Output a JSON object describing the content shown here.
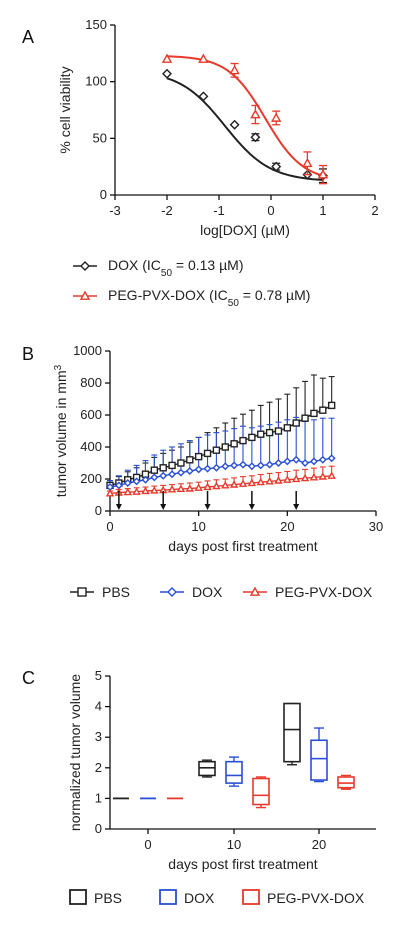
{
  "colors": {
    "black": "#222222",
    "red": "#e8392b",
    "blue": "#2a4fd6",
    "grid": "#111111"
  },
  "chart_data": [
    {
      "panel": "A",
      "type": "scatter",
      "xlabel": "log[DOX] (µM)",
      "ylabel": "% cell viability",
      "xlim": [
        -3,
        2
      ],
      "ylim": [
        0,
        150
      ],
      "xticks": [
        -3,
        -2,
        -1,
        0,
        1,
        2
      ],
      "yticks": [
        0,
        50,
        100,
        150
      ],
      "series": [
        {
          "name": "DOX (IC50 = 0.13 µM)",
          "legend_main": "DOX (IC",
          "legend_sub": "50",
          "legend_tail": " = 0.13 µM)",
          "marker": "diamond",
          "color": "#222222",
          "x": [
            -2,
            -1.3,
            -0.7,
            -0.3,
            0.1,
            0.7,
            1
          ],
          "y": [
            107,
            87,
            62,
            51,
            25,
            18,
            17
          ],
          "err": [
            0,
            0,
            0,
            3,
            3,
            0,
            6
          ],
          "fit": {
            "top": 110,
            "bottom": 12,
            "logic50": -0.886,
            "hill": 1
          }
        },
        {
          "name": "PEG-PVX-DOX (IC50 = 0.78 µM)",
          "legend_main": "PEG-PVX-DOX (IC",
          "legend_sub": "50",
          "legend_tail": " = 0.78 µM)",
          "marker": "triangle",
          "color": "#e8392b",
          "x": [
            -2,
            -1.3,
            -0.7,
            -0.3,
            0.1,
            0.7,
            1
          ],
          "y": [
            120,
            120,
            110,
            71,
            68,
            28,
            18
          ],
          "err": [
            0,
            0,
            6,
            8,
            6,
            10,
            8
          ],
          "fit": {
            "top": 123,
            "bottom": 12,
            "logic50": -0.108,
            "hill": 1.2
          }
        }
      ]
    },
    {
      "panel": "B",
      "type": "line",
      "xlabel": "days post first treatment",
      "ylabel_main": "tumor volume in mm",
      "ylabel_sup": "3",
      "xlim": [
        0,
        30
      ],
      "ylim": [
        0,
        1000
      ],
      "xticks": [
        0,
        10,
        20,
        30
      ],
      "yticks": [
        0,
        200,
        400,
        600,
        800,
        1000
      ],
      "treatment_days": [
        1,
        6,
        11,
        16,
        21
      ],
      "series": [
        {
          "name": "PBS",
          "marker": "square",
          "color": "#222222",
          "x": [
            0,
            1,
            2,
            3,
            4,
            5,
            6,
            7,
            8,
            9,
            10,
            11,
            12,
            13,
            14,
            15,
            16,
            17,
            18,
            19,
            20,
            21,
            22,
            23,
            24,
            25
          ],
          "y": [
            160,
            175,
            195,
            210,
            230,
            255,
            270,
            285,
            300,
            320,
            340,
            360,
            380,
            400,
            420,
            440,
            460,
            480,
            490,
            500,
            520,
            550,
            580,
            610,
            630,
            660
          ],
          "err": [
            30,
            40,
            50,
            60,
            70,
            80,
            90,
            95,
            100,
            110,
            120,
            130,
            140,
            150,
            160,
            165,
            170,
            180,
            190,
            200,
            210,
            220,
            230,
            240,
            200,
            180
          ]
        },
        {
          "name": "DOX",
          "marker": "diamond",
          "color": "#2a4fd6",
          "x": [
            0,
            1,
            2,
            3,
            4,
            5,
            6,
            7,
            8,
            9,
            10,
            11,
            12,
            13,
            14,
            15,
            16,
            17,
            18,
            19,
            20,
            21,
            22,
            23,
            24,
            25
          ],
          "y": [
            150,
            160,
            175,
            185,
            195,
            210,
            220,
            230,
            240,
            250,
            260,
            265,
            270,
            280,
            285,
            290,
            280,
            285,
            290,
            300,
            310,
            320,
            300,
            310,
            320,
            330
          ],
          "err": [
            40,
            60,
            80,
            100,
            120,
            140,
            160,
            170,
            180,
            190,
            200,
            210,
            220,
            220,
            230,
            240,
            240,
            245,
            250,
            255,
            260,
            265,
            260,
            260,
            260,
            250
          ]
        },
        {
          "name": "PEG-PVX-DOX",
          "marker": "triangle",
          "color": "#e8392b",
          "x": [
            0,
            1,
            2,
            3,
            4,
            5,
            6,
            7,
            8,
            9,
            10,
            11,
            12,
            13,
            14,
            15,
            16,
            17,
            18,
            19,
            20,
            21,
            22,
            23,
            24,
            25
          ],
          "y": [
            110,
            115,
            118,
            120,
            125,
            128,
            130,
            135,
            138,
            140,
            145,
            150,
            155,
            160,
            165,
            170,
            175,
            180,
            185,
            190,
            195,
            200,
            205,
            210,
            215,
            220
          ],
          "err": [
            15,
            20,
            22,
            25,
            25,
            28,
            30,
            30,
            32,
            35,
            35,
            38,
            40,
            40,
            42,
            45,
            45,
            48,
            50,
            50,
            52,
            55,
            55,
            58,
            60,
            60
          ]
        }
      ]
    },
    {
      "panel": "C",
      "type": "box",
      "xlabel": "days post first treatment",
      "ylabel": "normalized tumor volume",
      "ylim": [
        0,
        5
      ],
      "yticks": [
        0,
        1,
        2,
        3,
        4,
        5
      ],
      "categories": [
        "0",
        "10",
        "20"
      ],
      "series": [
        {
          "name": "PBS",
          "color": "#222222",
          "boxes": [
            {
              "min": 1,
              "q1": 1,
              "med": 1,
              "q3": 1,
              "max": 1
            },
            {
              "min": 1.7,
              "q1": 1.75,
              "med": 2.0,
              "q3": 2.2,
              "max": 2.25
            },
            {
              "min": 2.1,
              "q1": 2.2,
              "med": 3.25,
              "q3": 4.1,
              "max": 4.1
            }
          ]
        },
        {
          "name": "DOX",
          "color": "#2a4fd6",
          "boxes": [
            {
              "min": 1,
              "q1": 1,
              "med": 1,
              "q3": 1,
              "max": 1
            },
            {
              "min": 1.4,
              "q1": 1.5,
              "med": 1.75,
              "q3": 2.2,
              "max": 2.35
            },
            {
              "min": 1.55,
              "q1": 1.6,
              "med": 2.3,
              "q3": 2.9,
              "max": 3.3
            }
          ]
        },
        {
          "name": "PEG-PVX-DOX",
          "color": "#e8392b",
          "boxes": [
            {
              "min": 1,
              "q1": 1,
              "med": 1,
              "q3": 1,
              "max": 1
            },
            {
              "min": 0.7,
              "q1": 0.8,
              "med": 1.1,
              "q3": 1.65,
              "max": 1.7
            },
            {
              "min": 1.3,
              "q1": 1.35,
              "med": 1.5,
              "q3": 1.7,
              "max": 1.75
            }
          ]
        }
      ]
    }
  ]
}
